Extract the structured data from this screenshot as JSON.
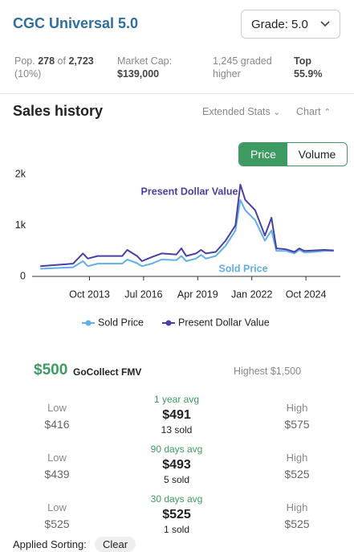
{
  "header": {
    "title": "CGC Universal 5.0",
    "grade_select": "Grade: 5.0"
  },
  "stats": {
    "pop_label": "Pop.",
    "pop_count": "278",
    "pop_of": "of",
    "pop_total": "2,723",
    "pop_pct": "(10%)",
    "market_cap_label": "Market Cap:",
    "market_cap": "$139,000",
    "graded_higher": "1,245 graded higher",
    "top_label": "Top",
    "top_pct": "55.9%"
  },
  "sales": {
    "title": "Sales history",
    "extended_stats": "Extended Stats",
    "chart_toggle": "Chart",
    "tabs": [
      "Price",
      "Volume"
    ]
  },
  "chart_data": {
    "type": "line",
    "x": [
      "2011-04",
      "2012-12",
      "2013-06",
      "2013-09",
      "2014-03",
      "2015-06",
      "2015-09",
      "2016-03",
      "2016-06",
      "2016-12",
      "2017-06",
      "2018-03",
      "2018-06",
      "2018-09",
      "2019-03",
      "2019-06",
      "2019-09",
      "2020-03",
      "2020-09",
      "2021-03",
      "2021-06",
      "2021-09",
      "2022-03",
      "2022-09",
      "2023-01",
      "2023-04",
      "2023-10",
      "2024-03",
      "2024-06",
      "2024-09",
      "2025-03",
      "2025-09",
      "2026-03"
    ],
    "series": [
      {
        "name": "Sold Price",
        "color": "#62aee8",
        "values": [
          150,
          180,
          300,
          200,
          250,
          250,
          330,
          260,
          200,
          250,
          330,
          320,
          400,
          300,
          350,
          420,
          350,
          400,
          600,
          900,
          1500,
          1300,
          1100,
          700,
          900,
          500,
          500,
          450,
          520,
          470,
          480,
          500,
          500
        ]
      },
      {
        "name": "Present Dollar Value",
        "color": "#4a3fa3",
        "values": [
          200,
          250,
          450,
          350,
          400,
          400,
          520,
          400,
          300,
          380,
          450,
          430,
          550,
          400,
          450,
          520,
          450,
          480,
          700,
          1000,
          1800,
          1500,
          1300,
          800,
          1150,
          550,
          530,
          480,
          550,
          500,
          510,
          520,
          510
        ]
      }
    ],
    "xlim": [
      "2010-11",
      "2026-07"
    ],
    "xticks": [
      {
        "value": "2013-10",
        "label": "Oct 2013"
      },
      {
        "value": "2016-07",
        "label": "Jul 2016"
      },
      {
        "value": "2019-04",
        "label": "Apr 2019"
      },
      {
        "value": "2022-01",
        "label": "Jan 2022"
      },
      {
        "value": "2024-10",
        "label": "Oct 2024"
      }
    ],
    "ylim": [
      0,
      2000
    ],
    "yticks": [
      0,
      {
        "value": 1000,
        "label": "1k"
      },
      {
        "value": 2000,
        "label": "2k"
      }
    ],
    "annotations": [
      "Present Dollar Value",
      "Sold Price"
    ],
    "legend": "bottom"
  },
  "fmv": {
    "value": "$500",
    "label": "GoCollect FMV",
    "highest": "Highest $1,500"
  },
  "rows": [
    {
      "low_label": "Low",
      "low": "$416",
      "period": "1 year avg",
      "avg": "$491",
      "sold": "13 sold",
      "high_label": "High",
      "high": "$575"
    },
    {
      "low_label": "Low",
      "low": "$439",
      "period": "90 days avg",
      "avg": "$493",
      "sold": "5 sold",
      "high_label": "High",
      "high": "$525"
    },
    {
      "low_label": "Low",
      "low": "$525",
      "period": "30 days avg",
      "avg": "$525",
      "sold": "1 sold",
      "high_label": "High",
      "high": "$525"
    }
  ],
  "footer": {
    "sorting": "Applied Sorting:",
    "clear": "Clear"
  }
}
